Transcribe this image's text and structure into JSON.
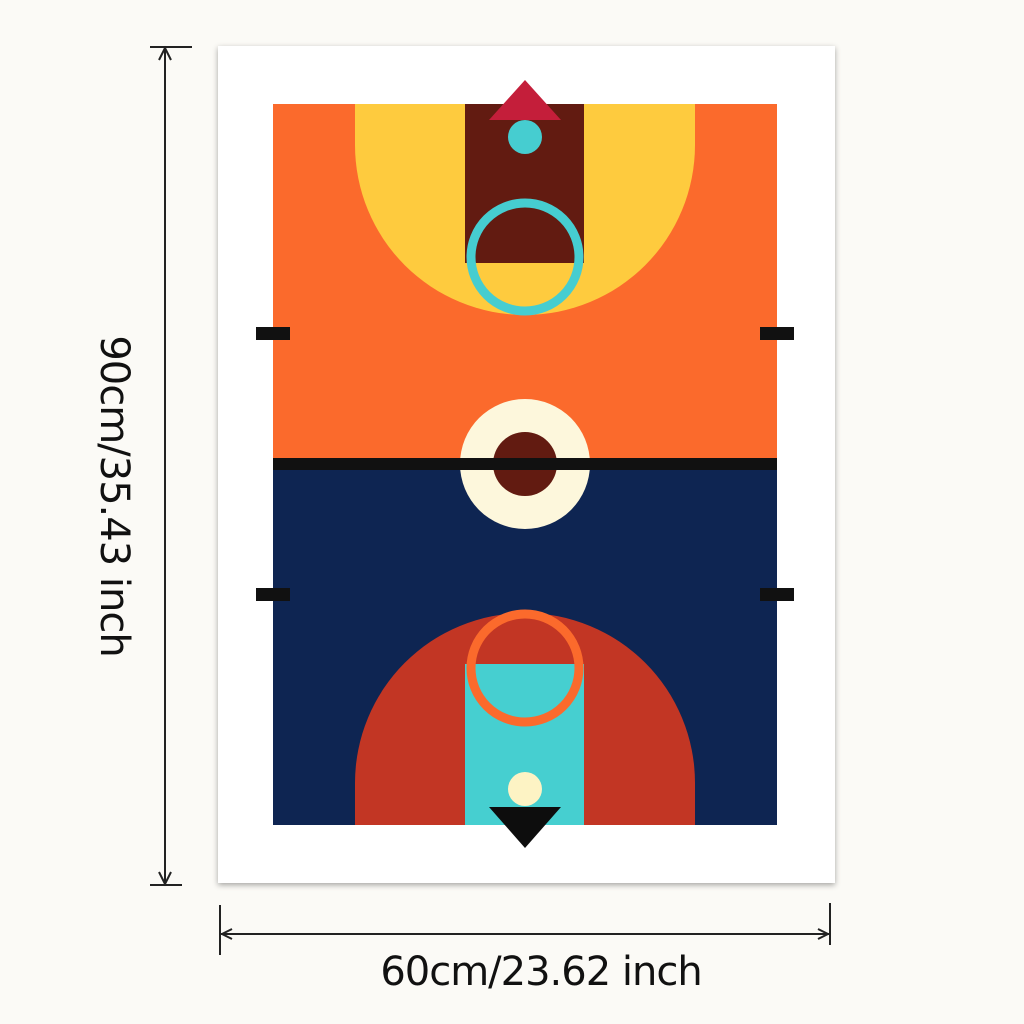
{
  "dimensions": {
    "height_text": "90cm/35.43 inch",
    "width_text": "60cm/23.62 inch"
  },
  "poster": {
    "subject": "geometric-basketball-court-art",
    "colors": {
      "frame": "#ffffff",
      "top_half": "#fb6a2c",
      "top_arc": "#fecb3e",
      "top_key": "#621b11",
      "top_ring": "#46cdd0",
      "top_triangle": "#c41e3a",
      "bottom_half": "#0e2552",
      "bottom_arc": "#c23624",
      "bottom_key": "#46cfd0",
      "bottom_ring": "#fb6a2c",
      "bottom_triangle": "#0d0d0d",
      "center_outer": "#fdf7dc",
      "center_inner": "#621b11",
      "midline": "#111111",
      "dot_light": "#fdf3c4"
    }
  }
}
